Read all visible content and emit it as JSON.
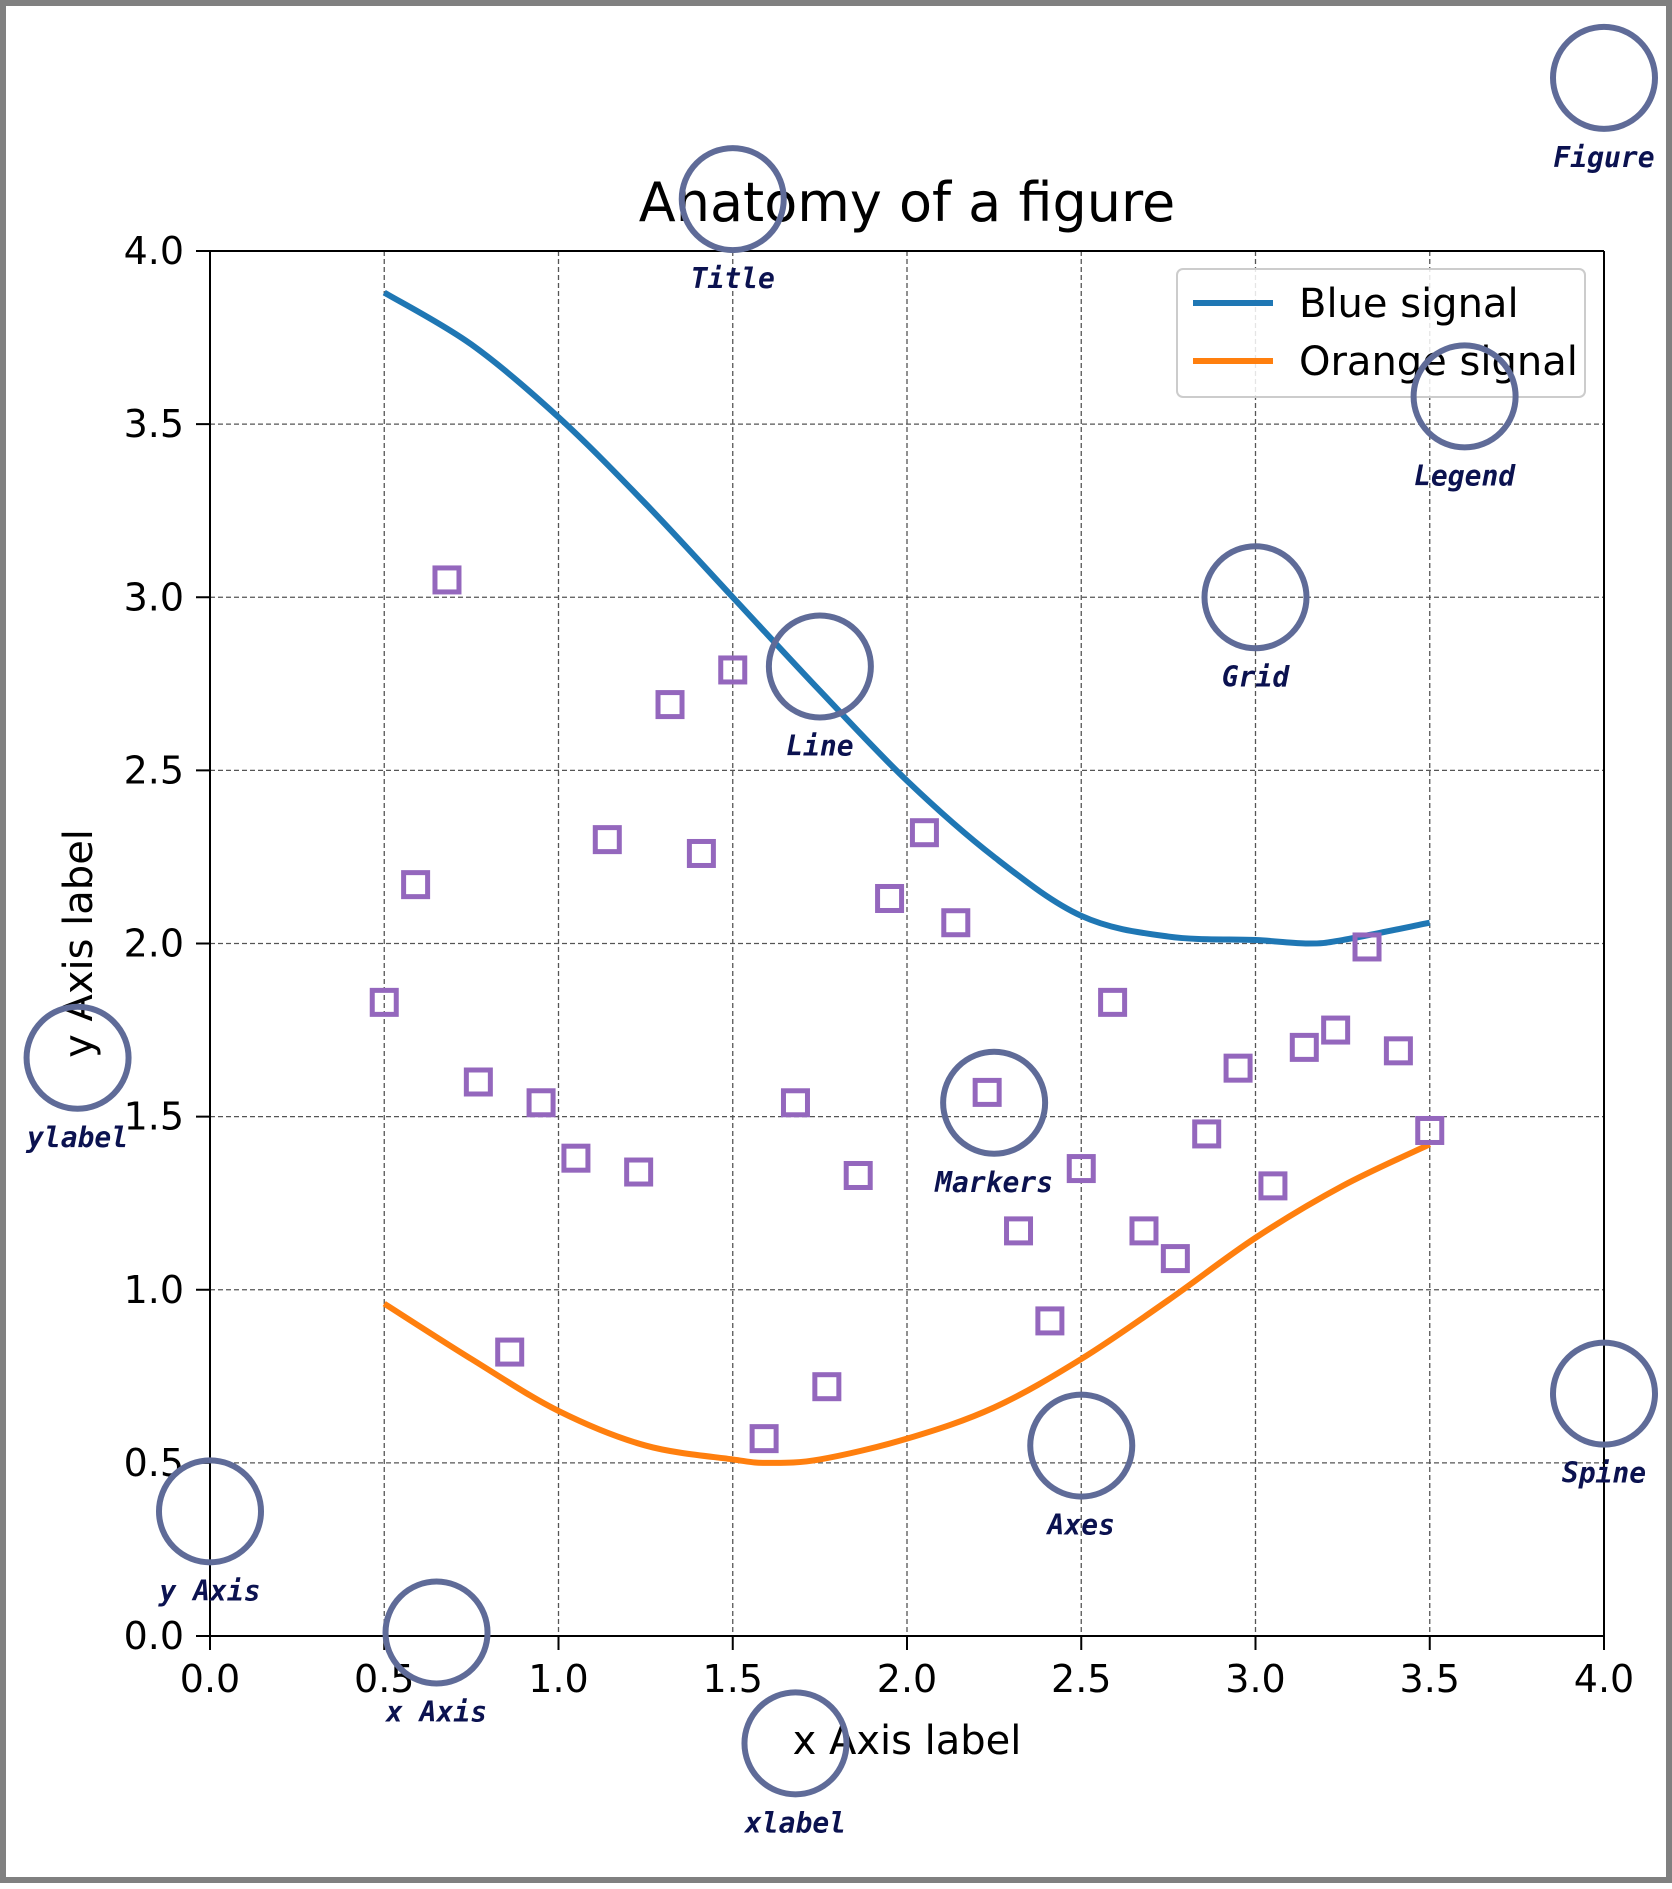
{
  "chart_data": {
    "type": "line",
    "title": "Anatomy of a figure",
    "xlabel": "x Axis label",
    "ylabel": "y Axis label",
    "xlim": [
      0,
      4
    ],
    "ylim": [
      0,
      4
    ],
    "x_ticks": [
      "0.0",
      "0.5",
      "1.0",
      "1.5",
      "2.0",
      "2.5",
      "3.0",
      "3.5",
      "4.0"
    ],
    "y_ticks": [
      "0.0",
      "0.5",
      "1.0",
      "1.5",
      "2.0",
      "2.5",
      "3.0",
      "3.5",
      "4.0"
    ],
    "grid": true,
    "legend_position": "top-right",
    "series": [
      {
        "name": "Blue signal",
        "kind": "line",
        "color": "#1f77b4",
        "x": [
          0.5,
          0.75,
          1.0,
          1.25,
          1.5,
          1.75,
          2.0,
          2.25,
          2.5,
          2.75,
          3.0,
          3.15,
          3.25,
          3.5
        ],
        "y": [
          3.88,
          3.73,
          3.52,
          3.27,
          3.0,
          2.73,
          2.47,
          2.25,
          2.08,
          2.02,
          2.01,
          2.0,
          2.01,
          2.06
        ]
      },
      {
        "name": "Orange signal",
        "kind": "line",
        "color": "#ff7f0e",
        "x": [
          0.5,
          0.75,
          1.0,
          1.25,
          1.5,
          1.6,
          1.75,
          2.0,
          2.25,
          2.5,
          2.75,
          3.0,
          3.25,
          3.5
        ],
        "y": [
          0.96,
          0.8,
          0.65,
          0.55,
          0.51,
          0.5,
          0.51,
          0.57,
          0.66,
          0.8,
          0.97,
          1.15,
          1.3,
          1.42
        ]
      },
      {
        "kind": "scatter",
        "marker": "square-open",
        "color": "#9467bd",
        "x": [
          0.5,
          0.59,
          0.68,
          0.77,
          0.86,
          0.95,
          1.05,
          1.14,
          1.23,
          1.32,
          1.41,
          1.5,
          1.59,
          1.68,
          1.77,
          1.86,
          1.95,
          2.05,
          2.14,
          2.23,
          2.32,
          2.41,
          2.5,
          2.59,
          2.68,
          2.77,
          2.86,
          2.95,
          3.05,
          3.14,
          3.23,
          3.32,
          3.41,
          3.5
        ],
        "y": [
          1.83,
          2.17,
          3.05,
          1.6,
          0.82,
          1.54,
          1.38,
          2.3,
          1.34,
          2.69,
          2.26,
          2.79,
          0.57,
          1.54,
          0.72,
          1.33,
          2.13,
          2.32,
          2.06,
          1.57,
          1.17,
          0.91,
          1.35,
          1.83,
          1.17,
          1.09,
          1.45,
          1.64,
          1.3,
          1.7,
          1.75,
          1.99,
          1.69,
          1.46
        ]
      }
    ],
    "annotations": [
      {
        "text": "Figure",
        "x": 4.0,
        "y": 4.5
      },
      {
        "text": "Title",
        "x": 1.5,
        "y": 4.15
      },
      {
        "text": "Legend",
        "x": 3.6,
        "y": 3.58
      },
      {
        "text": "Grid",
        "x": 3.0,
        "y": 3.0
      },
      {
        "text": "Line",
        "x": 1.75,
        "y": 2.8
      },
      {
        "text": "Markers",
        "x": 2.25,
        "y": 1.54
      },
      {
        "text": "ylabel",
        "x": -0.38,
        "y": 1.67
      },
      {
        "text": "Spine",
        "x": 4.0,
        "y": 0.7
      },
      {
        "text": "Axes",
        "x": 2.5,
        "y": 0.55
      },
      {
        "text": "y Axis",
        "x": 0.0,
        "y": 0.36
      },
      {
        "text": "x Axis",
        "x": 0.65,
        "y": 0.01
      },
      {
        "text": "xlabel",
        "x": 1.68,
        "y": -0.31
      }
    ],
    "annotation_colors": {
      "circle": "#5f6b98",
      "text": "#0b1250"
    }
  }
}
